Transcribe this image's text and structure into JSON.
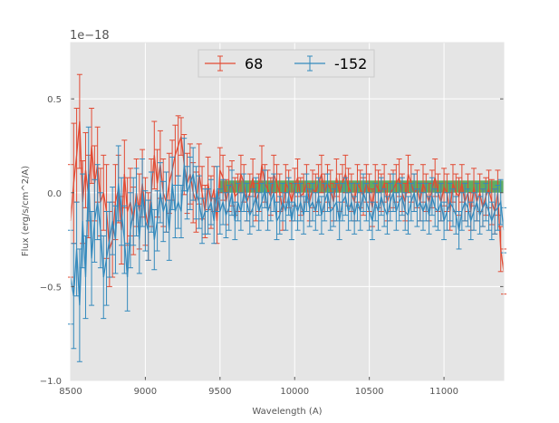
{
  "chart_data": {
    "type": "line",
    "title": "",
    "xlabel": "Wavelength (A)",
    "ylabel": "Flux (erg/s/cm^2/A)",
    "offset_text": "1e−18",
    "xlim": [
      8500,
      11400
    ],
    "ylim": [
      -1.0,
      0.8
    ],
    "x_ticks": [
      8500,
      9000,
      9500,
      10000,
      10500,
      11000
    ],
    "x_tick_labels": [
      "8500",
      "9000",
      "9500",
      "10000",
      "10500",
      "11000"
    ],
    "y_ticks": [
      -1.0,
      -0.5,
      0.0,
      0.5
    ],
    "y_tick_labels": [
      "−1.0",
      "−0.5",
      "0.0",
      "0.5"
    ],
    "grid": true,
    "legend_position": "top-center",
    "band": {
      "x_start": 9500,
      "x_end": 11400,
      "y_start": 0.0,
      "y_end": 0.065,
      "color": "#3f9e3f"
    },
    "series": [
      {
        "name": "68",
        "color": "#e24a33",
        "x": [
          8500,
          8520,
          8540,
          8560,
          8580,
          8600,
          8620,
          8640,
          8660,
          8680,
          8700,
          8720,
          8740,
          8760,
          8780,
          8800,
          8820,
          8840,
          8860,
          8880,
          8900,
          8920,
          8940,
          8960,
          8980,
          9000,
          9020,
          9040,
          9060,
          9080,
          9100,
          9120,
          9140,
          9160,
          9180,
          9200,
          9220,
          9240,
          9260,
          9280,
          9300,
          9320,
          9340,
          9360,
          9380,
          9400,
          9420,
          9440,
          9460,
          9480,
          9500,
          9520,
          9540,
          9560,
          9580,
          9600,
          9620,
          9640,
          9660,
          9680,
          9700,
          9720,
          9740,
          9760,
          9780,
          9800,
          9820,
          9840,
          9860,
          9880,
          9900,
          9920,
          9940,
          9960,
          9980,
          10000,
          10020,
          10040,
          10060,
          10080,
          10100,
          10120,
          10140,
          10160,
          10180,
          10200,
          10220,
          10240,
          10260,
          10280,
          10300,
          10320,
          10340,
          10360,
          10380,
          10400,
          10420,
          10440,
          10460,
          10480,
          10500,
          10520,
          10540,
          10560,
          10580,
          10600,
          10620,
          10640,
          10660,
          10680,
          10700,
          10720,
          10740,
          10760,
          10780,
          10800,
          10820,
          10840,
          10860,
          10880,
          10900,
          10920,
          10940,
          10960,
          10980,
          11000,
          11020,
          11040,
          11060,
          11080,
          11100,
          11120,
          11140,
          11160,
          11180,
          11200,
          11220,
          11240,
          11260,
          11280,
          11300,
          11320,
          11340,
          11360,
          11380,
          11400
        ],
        "y": [
          -0.15,
          0.05,
          0.2,
          0.38,
          -0.05,
          0.12,
          -0.02,
          0.25,
          0.05,
          0.15,
          -0.05,
          0.0,
          -0.1,
          -0.3,
          -0.25,
          -0.05,
          0.02,
          -0.2,
          0.1,
          -0.1,
          -0.05,
          -0.15,
          0.0,
          -0.1,
          0.05,
          -0.1,
          -0.18,
          0.0,
          0.2,
          0.05,
          0.15,
          0.0,
          -0.05,
          0.05,
          0.12,
          0.2,
          0.25,
          0.3,
          0.15,
          0.05,
          0.1,
          0.0,
          -0.05,
          0.1,
          0.0,
          -0.1,
          0.05,
          -0.05,
          0.02,
          -0.15,
          0.12,
          0.08,
          -0.05,
          0.02,
          0.05,
          -0.02,
          0.0,
          0.1,
          0.05,
          -0.05,
          0.0,
          0.08,
          -0.05,
          0.0,
          0.15,
          0.05,
          0.02,
          -0.02,
          0.1,
          0.05,
          0.0,
          -0.1,
          0.05,
          0.02,
          -0.05,
          0.03,
          0.08,
          -0.02,
          0.0,
          0.05,
          -0.05,
          0.02,
          0.0,
          0.05,
          0.1,
          0.0,
          0.05,
          0.02,
          -0.05,
          0.08,
          0.0,
          0.05,
          0.1,
          0.03,
          0.0,
          -0.05,
          0.05,
          0.02,
          -0.02,
          0.05,
          0.0,
          -0.08,
          0.05,
          0.02,
          0.0,
          0.05,
          -0.05,
          0.0,
          0.02,
          0.05,
          0.08,
          0.0,
          -0.05,
          0.1,
          0.05,
          0.0,
          0.02,
          -0.05,
          0.05,
          0.0,
          -0.05,
          0.02,
          0.08,
          0.0,
          -0.05,
          0.03,
          0.0,
          -0.1,
          0.05,
          0.0,
          -0.02,
          0.05,
          -0.05,
          0.0,
          -0.1,
          0.03,
          -0.05,
          0.0,
          -0.08,
          -0.02,
          0.02,
          -0.05,
          -0.1,
          0.0,
          -0.3,
          -0.42
        ],
        "err": [
          0.3,
          0.32,
          0.25,
          0.25,
          0.22,
          0.2,
          0.22,
          0.2,
          0.2,
          0.2,
          0.18,
          0.2,
          0.25,
          0.2,
          0.2,
          0.2,
          0.18,
          0.18,
          0.18,
          0.18,
          0.18,
          0.18,
          0.18,
          0.2,
          0.18,
          0.18,
          0.18,
          0.18,
          0.18,
          0.18,
          0.18,
          0.18,
          0.16,
          0.16,
          0.16,
          0.16,
          0.16,
          0.1,
          0.16,
          0.16,
          0.16,
          0.16,
          0.16,
          0.16,
          0.14,
          0.14,
          0.14,
          0.14,
          0.12,
          0.12,
          0.12,
          0.12,
          0.12,
          0.12,
          0.12,
          0.1,
          0.1,
          0.1,
          0.1,
          0.1,
          0.1,
          0.1,
          0.1,
          0.1,
          0.1,
          0.1,
          0.1,
          0.1,
          0.1,
          0.1,
          0.1,
          0.1,
          0.1,
          0.1,
          0.1,
          0.1,
          0.1,
          0.1,
          0.1,
          0.1,
          0.1,
          0.1,
          0.1,
          0.1,
          0.1,
          0.1,
          0.1,
          0.1,
          0.1,
          0.1,
          0.1,
          0.1,
          0.1,
          0.1,
          0.1,
          0.1,
          0.1,
          0.1,
          0.1,
          0.1,
          0.1,
          0.1,
          0.1,
          0.1,
          0.1,
          0.1,
          0.1,
          0.1,
          0.1,
          0.1,
          0.1,
          0.1,
          0.1,
          0.1,
          0.1,
          0.1,
          0.1,
          0.1,
          0.1,
          0.1,
          0.1,
          0.1,
          0.1,
          0.1,
          0.1,
          0.1,
          0.1,
          0.1,
          0.1,
          0.1,
          0.1,
          0.1,
          0.1,
          0.1,
          0.1,
          0.1,
          0.1,
          0.1,
          0.1,
          0.1,
          0.1,
          0.12,
          0.12,
          0.12,
          0.12,
          0.12
        ]
      },
      {
        "name": "-152",
        "color": "#348abd",
        "x": [
          8500,
          8520,
          8540,
          8560,
          8580,
          8600,
          8620,
          8640,
          8660,
          8680,
          8700,
          8720,
          8740,
          8760,
          8780,
          8800,
          8820,
          8840,
          8860,
          8880,
          8900,
          8920,
          8940,
          8960,
          8980,
          9000,
          9020,
          9040,
          9060,
          9080,
          9100,
          9120,
          9140,
          9160,
          9180,
          9200,
          9220,
          9240,
          9260,
          9280,
          9300,
          9320,
          9340,
          9360,
          9380,
          9400,
          9420,
          9440,
          9460,
          9480,
          9500,
          9520,
          9540,
          9560,
          9580,
          9600,
          9620,
          9640,
          9660,
          9680,
          9700,
          9720,
          9740,
          9760,
          9780,
          9800,
          9820,
          9840,
          9860,
          9880,
          9900,
          9920,
          9940,
          9960,
          9980,
          10000,
          10020,
          10040,
          10060,
          10080,
          10100,
          10120,
          10140,
          10160,
          10180,
          10200,
          10220,
          10240,
          10260,
          10280,
          10300,
          10320,
          10340,
          10360,
          10380,
          10400,
          10420,
          10440,
          10460,
          10480,
          10500,
          10520,
          10540,
          10560,
          10580,
          10600,
          10620,
          10640,
          10660,
          10680,
          10700,
          10720,
          10740,
          10760,
          10780,
          10800,
          10820,
          10840,
          10860,
          10880,
          10900,
          10920,
          10940,
          10960,
          10980,
          11000,
          11020,
          11040,
          11060,
          11080,
          11100,
          11120,
          11140,
          11160,
          11180,
          11200,
          11220,
          11240,
          11260,
          11280,
          11300,
          11320,
          11340,
          11360,
          11380,
          11400
        ],
        "y": [
          -0.45,
          -0.55,
          -0.3,
          -0.6,
          -0.15,
          -0.45,
          0.1,
          -0.35,
          -0.15,
          -0.05,
          -0.2,
          -0.45,
          -0.35,
          -0.25,
          -0.15,
          -0.25,
          0.05,
          -0.1,
          -0.25,
          -0.45,
          -0.2,
          -0.1,
          -0.05,
          -0.25,
          0.0,
          -0.15,
          -0.2,
          -0.05,
          -0.25,
          -0.15,
          0.0,
          -0.1,
          -0.05,
          -0.2,
          0.05,
          -0.1,
          -0.05,
          -0.1,
          0.15,
          0.0,
          0.05,
          0.1,
          0.0,
          -0.05,
          -0.15,
          -0.1,
          -0.1,
          -0.05,
          -0.15,
          0.02,
          -0.1,
          -0.05,
          -0.12,
          -0.08,
          0.0,
          -0.15,
          -0.05,
          -0.1,
          0.0,
          -0.05,
          -0.12,
          -0.08,
          -0.02,
          -0.1,
          -0.05,
          0.02,
          -0.1,
          -0.05,
          0.0,
          -0.15,
          -0.12,
          -0.05,
          -0.1,
          -0.02,
          -0.15,
          -0.05,
          -0.1,
          -0.05,
          -0.12,
          0.0,
          -0.08,
          -0.05,
          -0.1,
          -0.02,
          -0.12,
          -0.05,
          0.0,
          -0.1,
          -0.08,
          -0.05,
          -0.15,
          -0.05,
          -0.02,
          -0.1,
          -0.05,
          -0.12,
          -0.05,
          -0.1,
          0.0,
          -0.05,
          -0.1,
          -0.15,
          -0.05,
          -0.1,
          -0.02,
          -0.08,
          -0.12,
          -0.05,
          0.0,
          -0.1,
          -0.05,
          -0.02,
          -0.1,
          -0.12,
          -0.05,
          0.0,
          -0.08,
          -0.05,
          -0.1,
          -0.05,
          -0.12,
          -0.02,
          -0.08,
          -0.1,
          -0.05,
          -0.15,
          -0.1,
          -0.05,
          -0.08,
          -0.12,
          -0.2,
          -0.1,
          -0.05,
          -0.08,
          -0.15,
          -0.1,
          -0.05,
          -0.12,
          -0.08,
          -0.05,
          -0.1,
          -0.15,
          -0.1,
          -0.08,
          -0.05,
          -0.2
        ],
        "err": [
          0.25,
          0.28,
          0.25,
          0.3,
          0.25,
          0.22,
          0.25,
          0.25,
          0.22,
          0.2,
          0.2,
          0.22,
          0.25,
          0.2,
          0.18,
          0.18,
          0.2,
          0.18,
          0.18,
          0.18,
          0.2,
          0.18,
          0.18,
          0.18,
          0.18,
          0.16,
          0.16,
          0.16,
          0.16,
          0.16,
          0.16,
          0.16,
          0.16,
          0.16,
          0.14,
          0.14,
          0.14,
          0.14,
          0.14,
          0.14,
          0.14,
          0.14,
          0.14,
          0.14,
          0.12,
          0.12,
          0.12,
          0.12,
          0.12,
          0.12,
          0.12,
          0.12,
          0.12,
          0.12,
          0.12,
          0.1,
          0.1,
          0.1,
          0.1,
          0.1,
          0.1,
          0.1,
          0.1,
          0.1,
          0.1,
          0.1,
          0.1,
          0.1,
          0.1,
          0.1,
          0.1,
          0.1,
          0.1,
          0.1,
          0.1,
          0.1,
          0.1,
          0.1,
          0.1,
          0.1,
          0.1,
          0.1,
          0.1,
          0.1,
          0.1,
          0.1,
          0.1,
          0.1,
          0.1,
          0.1,
          0.1,
          0.1,
          0.1,
          0.1,
          0.1,
          0.1,
          0.1,
          0.1,
          0.1,
          0.1,
          0.1,
          0.1,
          0.1,
          0.1,
          0.1,
          0.1,
          0.1,
          0.1,
          0.1,
          0.1,
          0.1,
          0.1,
          0.1,
          0.1,
          0.1,
          0.1,
          0.1,
          0.1,
          0.1,
          0.1,
          0.1,
          0.1,
          0.1,
          0.1,
          0.1,
          0.1,
          0.1,
          0.1,
          0.1,
          0.1,
          0.1,
          0.1,
          0.1,
          0.1,
          0.1,
          0.1,
          0.1,
          0.1,
          0.1,
          0.1,
          0.1,
          0.1,
          0.12,
          0.12,
          0.12,
          0.12
        ]
      }
    ]
  }
}
